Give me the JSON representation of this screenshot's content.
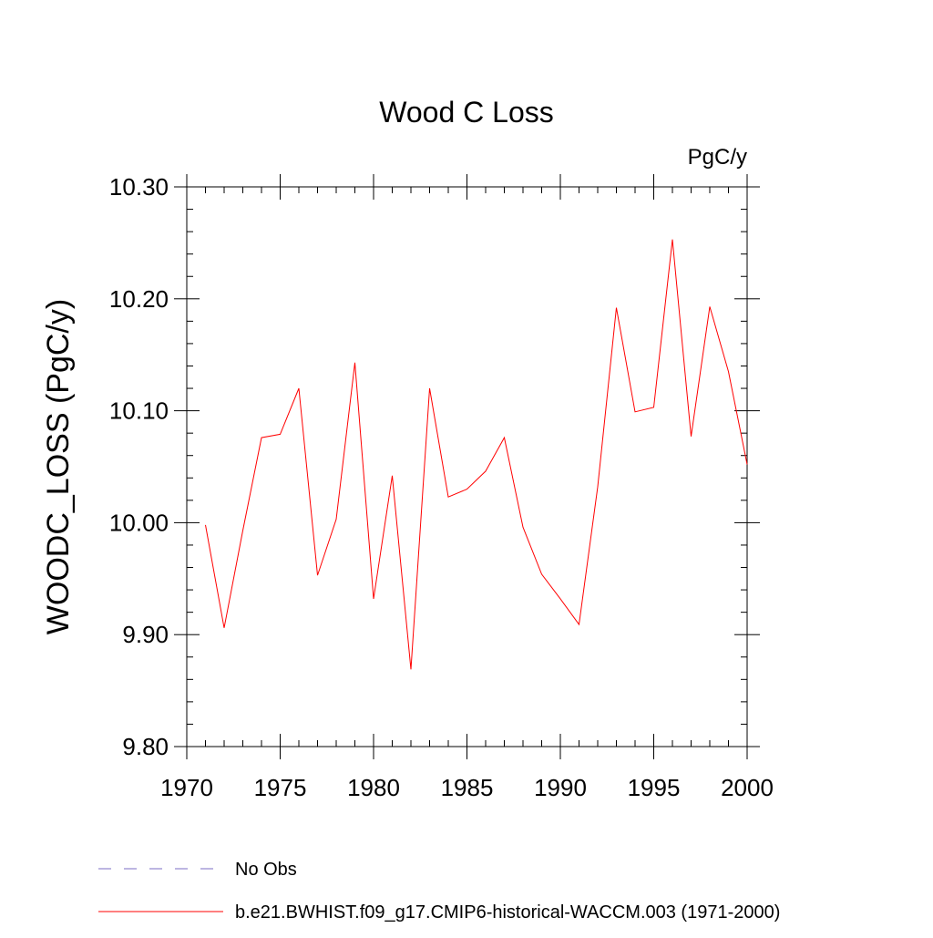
{
  "chart_data": {
    "type": "line",
    "title": "Wood C Loss",
    "units_label": "PgC/y",
    "xlabel": "",
    "ylabel": "WOODC_LOSS  (PgC/y)",
    "xlim": [
      1970,
      2000
    ],
    "ylim": [
      9.8,
      10.3
    ],
    "x_ticks": [
      1970,
      1975,
      1980,
      1985,
      1990,
      1995,
      2000
    ],
    "y_ticks": [
      "9.80",
      "9.90",
      "10.00",
      "10.10",
      "10.20",
      "10.30"
    ],
    "series": [
      {
        "name": "b.e21.BWHIST.f09_g17.CMIP6-historical-WACCM.003 (1971-2000)",
        "color": "#ff0000",
        "style": "solid",
        "x": [
          1971,
          1972,
          1973,
          1974,
          1975,
          1976,
          1977,
          1978,
          1979,
          1980,
          1981,
          1982,
          1983,
          1984,
          1985,
          1986,
          1987,
          1988,
          1989,
          1990,
          1991,
          1992,
          1993,
          1994,
          1995,
          1996,
          1997,
          1998,
          1999,
          2000
        ],
        "values": [
          9.998,
          9.906,
          9.993,
          10.076,
          10.079,
          10.12,
          9.953,
          10.003,
          10.143,
          9.932,
          10.042,
          9.869,
          10.12,
          10.023,
          10.03,
          10.046,
          10.076,
          9.996,
          9.954,
          9.932,
          9.909,
          10.032,
          10.192,
          10.099,
          10.103,
          10.253,
          10.077,
          10.193,
          10.135,
          10.052
        ]
      }
    ],
    "legend": [
      {
        "label": "No Obs",
        "color": "#7b6ec6",
        "style": "dashed"
      },
      {
        "label": "b.e21.BWHIST.f09_g17.CMIP6-historical-WACCM.003 (1971-2000)",
        "color": "#ff0000",
        "style": "solid"
      }
    ],
    "legend_position": "bottom-left"
  }
}
